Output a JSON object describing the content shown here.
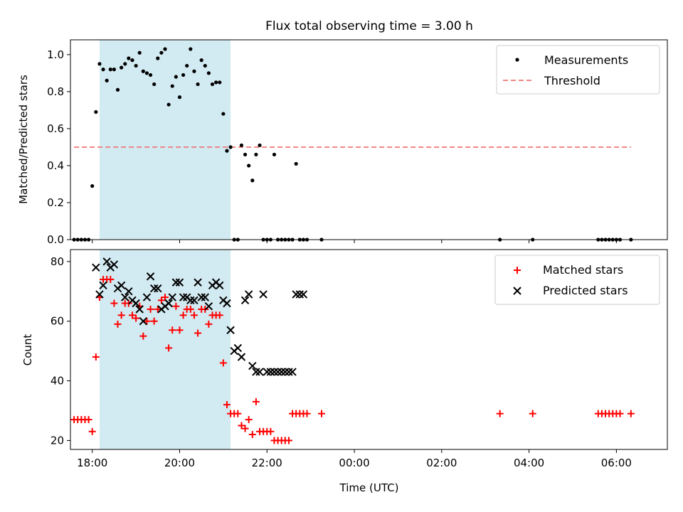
{
  "figure_title": "Flux total observing time = 3.00 h",
  "colors": {
    "measurements": "#000000",
    "threshold": "#f07777",
    "matched": "#ff0000",
    "predicted": "#000000",
    "span": "#add8e6"
  },
  "chart_data": [
    {
      "type": "scatter",
      "title": "Flux total observing time = 3.00 h",
      "xlabel": "",
      "ylabel": "Matched/Predicted stars",
      "xlim": [
        "17:30",
        "07:10"
      ],
      "ylim": [
        0,
        1.08
      ],
      "yticks": [
        0.0,
        0.2,
        0.4,
        0.6,
        0.8,
        1.0
      ],
      "ytick_labels": [
        "0.0",
        "0.2",
        "0.4",
        "0.6",
        "0.8",
        "1.0"
      ],
      "grid": false,
      "legend_position": "upper-right",
      "shaded_span": {
        "x_start": "18:10",
        "x_end": "21:10"
      },
      "threshold": {
        "name": "Threshold",
        "y": 0.5,
        "x_start": "17:35",
        "x_end": "06:20"
      },
      "series": [
        {
          "name": "Measurements",
          "x": [
            "17:35",
            "17:40",
            "17:45",
            "17:50",
            "17:55",
            "18:00",
            "18:05",
            "18:10",
            "18:15",
            "18:20",
            "18:25",
            "18:30",
            "18:35",
            "18:40",
            "18:45",
            "18:50",
            "18:55",
            "19:00",
            "19:05",
            "19:10",
            "19:15",
            "19:20",
            "19:25",
            "19:30",
            "19:35",
            "19:40",
            "19:45",
            "19:50",
            "19:55",
            "20:00",
            "20:05",
            "20:10",
            "20:15",
            "20:20",
            "20:25",
            "20:30",
            "20:35",
            "20:40",
            "20:45",
            "20:50",
            "20:55",
            "21:00",
            "21:05",
            "21:10",
            "21:15",
            "21:20",
            "21:25",
            "21:30",
            "21:35",
            "21:40",
            "21:45",
            "21:50",
            "21:55",
            "22:00",
            "22:05",
            "22:10",
            "22:15",
            "22:20",
            "22:25",
            "22:30",
            "22:35",
            "22:40",
            "22:45",
            "22:50",
            "22:55",
            "23:15",
            "03:20",
            "04:05",
            "05:35",
            "05:40",
            "05:45",
            "05:50",
            "05:55",
            "06:00",
            "06:05",
            "06:20"
          ],
          "y": [
            0,
            0,
            0,
            0,
            0,
            0.29,
            0.69,
            0.95,
            0.92,
            0.86,
            0.92,
            0.92,
            0.81,
            0.93,
            0.95,
            0.98,
            0.97,
            0.94,
            1.01,
            0.91,
            0.9,
            0.89,
            0.84,
            0.98,
            1.01,
            1.03,
            0.73,
            0.83,
            0.88,
            0.77,
            0.89,
            0.94,
            1.03,
            0.91,
            0.84,
            0.97,
            0.94,
            0.9,
            0.84,
            0.85,
            0.85,
            0.68,
            0.48,
            0.5,
            0,
            0,
            0.51,
            0.46,
            0.4,
            0.32,
            0.46,
            0.51,
            0,
            0,
            0,
            0.46,
            0,
            0,
            0,
            0,
            0,
            0.41,
            0,
            0,
            0,
            0,
            0,
            0,
            0,
            0,
            0,
            0,
            0,
            0,
            0,
            0
          ]
        }
      ]
    },
    {
      "type": "scatter",
      "title": "",
      "xlabel": "Time (UTC)",
      "ylabel": "Count",
      "xlim": [
        "17:30",
        "07:10"
      ],
      "ylim": [
        17,
        84
      ],
      "yticks": [
        20,
        40,
        60,
        80
      ],
      "ytick_labels": [
        "20",
        "40",
        "60",
        "80"
      ],
      "xticks": [
        "18:00",
        "20:00",
        "22:00",
        "00:00",
        "02:00",
        "04:00",
        "06:00"
      ],
      "grid": false,
      "legend_position": "upper-right",
      "shaded_span": {
        "x_start": "18:10",
        "x_end": "21:10"
      },
      "series": [
        {
          "name": "Matched stars",
          "marker": "plus",
          "x": [
            "17:35",
            "17:40",
            "17:45",
            "17:50",
            "17:55",
            "18:00",
            "18:05",
            "18:10",
            "18:15",
            "18:20",
            "18:25",
            "18:30",
            "18:35",
            "18:40",
            "18:45",
            "18:50",
            "18:55",
            "19:00",
            "19:05",
            "19:10",
            "19:15",
            "19:20",
            "19:25",
            "19:30",
            "19:35",
            "19:40",
            "19:45",
            "19:50",
            "19:55",
            "20:00",
            "20:05",
            "20:10",
            "20:15",
            "20:20",
            "20:25",
            "20:30",
            "20:35",
            "20:40",
            "20:45",
            "20:50",
            "20:55",
            "21:00",
            "21:05",
            "21:10",
            "21:15",
            "21:20",
            "21:25",
            "21:30",
            "21:35",
            "21:40",
            "21:45",
            "21:50",
            "21:55",
            "22:00",
            "22:05",
            "22:10",
            "22:15",
            "22:20",
            "22:25",
            "22:30",
            "22:35",
            "22:40",
            "22:45",
            "22:50",
            "22:55",
            "23:15",
            "03:20",
            "04:05",
            "05:35",
            "05:40",
            "05:45",
            "05:50",
            "05:55",
            "06:00",
            "06:05",
            "06:20"
          ],
          "y": [
            27,
            27,
            27,
            27,
            27,
            23,
            48,
            68,
            74,
            74,
            74,
            66,
            59,
            62,
            66,
            66,
            62,
            61,
            65,
            55,
            60,
            64,
            60,
            64,
            67,
            68,
            51,
            57,
            65,
            57,
            62,
            64,
            64,
            62,
            56,
            64,
            64,
            59,
            62,
            62,
            62,
            46,
            32,
            29,
            29,
            29,
            25,
            24,
            27,
            22,
            33,
            23,
            23,
            23,
            23,
            20,
            20,
            20,
            20,
            20,
            29,
            29,
            29,
            29,
            29,
            29,
            29,
            29,
            29,
            29,
            29,
            29,
            29,
            29,
            29,
            29
          ]
        },
        {
          "name": "Predicted stars",
          "marker": "x",
          "x": [
            "18:05",
            "18:10",
            "18:15",
            "18:20",
            "18:25",
            "18:30",
            "18:35",
            "18:40",
            "18:45",
            "18:50",
            "18:55",
            "19:00",
            "19:05",
            "19:10",
            "19:15",
            "19:20",
            "19:25",
            "19:30",
            "19:35",
            "19:40",
            "19:45",
            "19:50",
            "19:55",
            "20:00",
            "20:05",
            "20:10",
            "20:15",
            "20:20",
            "20:25",
            "20:30",
            "20:35",
            "20:40",
            "20:45",
            "20:50",
            "20:55",
            "21:00",
            "21:05",
            "21:10",
            "21:15",
            "21:20",
            "21:25",
            "21:30",
            "21:35",
            "21:40",
            "21:45",
            "21:50",
            "21:55",
            "22:00",
            "22:05",
            "22:10",
            "22:15",
            "22:20",
            "22:25",
            "22:30",
            "22:35",
            "22:40",
            "22:45",
            "22:50"
          ],
          "y": [
            78,
            69,
            72,
            80,
            78,
            79,
            71,
            72,
            68,
            70,
            67,
            66,
            64,
            60,
            68,
            75,
            71,
            71,
            64,
            65,
            66,
            68,
            73,
            73,
            68,
            68,
            67,
            67,
            73,
            68,
            68,
            65,
            72,
            73,
            72,
            67,
            66,
            57,
            50,
            51,
            48,
            67,
            69,
            45,
            43,
            43,
            69,
            43,
            43,
            43,
            43,
            43,
            43,
            43,
            43,
            69,
            69,
            69
          ]
        }
      ]
    }
  ]
}
